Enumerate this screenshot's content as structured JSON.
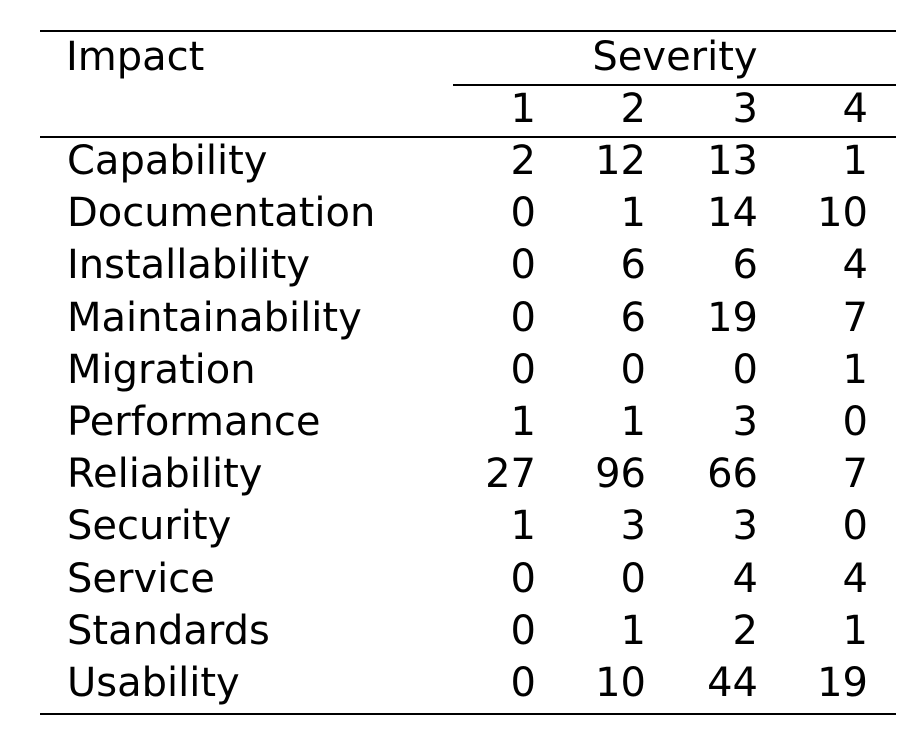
{
  "table": {
    "header": {
      "impact_label": "Impact",
      "severity_label": "Severity",
      "severity_levels": [
        "1",
        "2",
        "3",
        "4"
      ]
    },
    "rows": [
      {
        "impact": "Capability",
        "values": [
          "2",
          "12",
          "13",
          "1"
        ]
      },
      {
        "impact": "Documentation",
        "values": [
          "0",
          "1",
          "14",
          "10"
        ]
      },
      {
        "impact": "Installability",
        "values": [
          "0",
          "6",
          "6",
          "4"
        ]
      },
      {
        "impact": "Maintainability",
        "values": [
          "0",
          "6",
          "19",
          "7"
        ]
      },
      {
        "impact": "Migration",
        "values": [
          "0",
          "0",
          "0",
          "1"
        ]
      },
      {
        "impact": "Performance",
        "values": [
          "1",
          "1",
          "3",
          "0"
        ]
      },
      {
        "impact": "Reliability",
        "values": [
          "27",
          "96",
          "66",
          "7"
        ]
      },
      {
        "impact": "Security",
        "values": [
          "1",
          "3",
          "3",
          "0"
        ]
      },
      {
        "impact": "Service",
        "values": [
          "0",
          "0",
          "4",
          "4"
        ]
      },
      {
        "impact": "Standards",
        "values": [
          "0",
          "1",
          "2",
          "1"
        ]
      },
      {
        "impact": "Usability",
        "values": [
          "0",
          "10",
          "44",
          "19"
        ]
      }
    ]
  }
}
